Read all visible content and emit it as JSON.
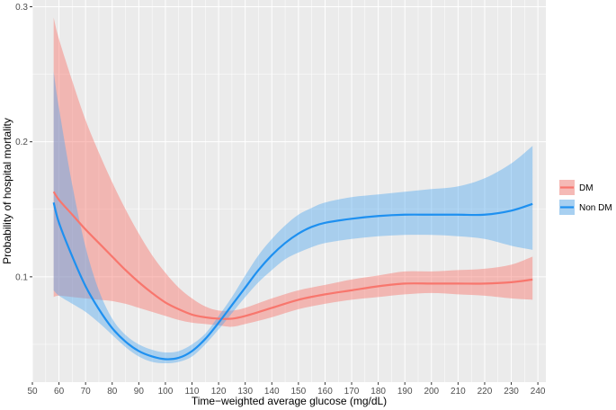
{
  "chart_data": {
    "type": "line",
    "xlabel": "Time−weighted average glucose (mg/dL)",
    "ylabel": "Probability of hospital mortality",
    "xlim": [
      50,
      243
    ],
    "ylim": [
      0.022,
      0.305
    ],
    "x_ticks": [
      50,
      60,
      70,
      80,
      90,
      100,
      110,
      120,
      130,
      140,
      150,
      160,
      170,
      180,
      190,
      200,
      210,
      220,
      230,
      240
    ],
    "x_tick_labels": [
      "50",
      "60",
      "70",
      "80",
      "90",
      "100",
      "110",
      "120",
      "130",
      "140",
      "150",
      "160",
      "170",
      "180",
      "190",
      "200",
      "210",
      "220",
      "230",
      "240"
    ],
    "y_ticks": [
      0.1,
      0.2,
      0.3
    ],
    "y_tick_labels": [
      "0.1",
      "0.2",
      "0.3"
    ],
    "grid": true,
    "legend_position": "right",
    "series": [
      {
        "name": "DM",
        "color": "#F8766D",
        "band_color": "#F8766D",
        "x": [
          58,
          60,
          65,
          70,
          75,
          80,
          85,
          90,
          95,
          100,
          105,
          110,
          115,
          120,
          125,
          130,
          140,
          150,
          160,
          170,
          180,
          190,
          200,
          210,
          220,
          230,
          238
        ],
        "y": [
          0.163,
          0.157,
          0.146,
          0.135,
          0.125,
          0.115,
          0.105,
          0.096,
          0.088,
          0.081,
          0.076,
          0.072,
          0.07,
          0.069,
          0.069,
          0.071,
          0.077,
          0.083,
          0.087,
          0.09,
          0.093,
          0.095,
          0.095,
          0.095,
          0.095,
          0.096,
          0.098
        ],
        "lower": [
          0.085,
          0.086,
          0.085,
          0.084,
          0.083,
          0.082,
          0.08,
          0.077,
          0.074,
          0.071,
          0.068,
          0.066,
          0.065,
          0.064,
          0.063,
          0.065,
          0.07,
          0.076,
          0.08,
          0.083,
          0.085,
          0.087,
          0.088,
          0.087,
          0.086,
          0.084,
          0.083
        ],
        "upper": [
          0.292,
          0.276,
          0.245,
          0.216,
          0.192,
          0.17,
          0.15,
          0.132,
          0.116,
          0.103,
          0.092,
          0.084,
          0.078,
          0.075,
          0.075,
          0.077,
          0.084,
          0.09,
          0.094,
          0.098,
          0.101,
          0.104,
          0.104,
          0.105,
          0.106,
          0.109,
          0.115
        ]
      },
      {
        "name": "Non DM",
        "color": "#1E90F0",
        "band_color": "#4DA6F0",
        "x": [
          58,
          60,
          65,
          70,
          75,
          80,
          85,
          90,
          95,
          100,
          105,
          110,
          115,
          120,
          125,
          130,
          135,
          140,
          145,
          150,
          155,
          160,
          170,
          180,
          190,
          200,
          210,
          220,
          230,
          238
        ],
        "y": [
          0.155,
          0.14,
          0.115,
          0.093,
          0.076,
          0.062,
          0.052,
          0.045,
          0.041,
          0.039,
          0.04,
          0.045,
          0.054,
          0.066,
          0.079,
          0.092,
          0.105,
          0.116,
          0.125,
          0.132,
          0.137,
          0.14,
          0.143,
          0.145,
          0.146,
          0.146,
          0.146,
          0.146,
          0.149,
          0.154
        ],
        "lower": [
          0.09,
          0.086,
          0.08,
          0.074,
          0.066,
          0.057,
          0.048,
          0.041,
          0.037,
          0.036,
          0.037,
          0.041,
          0.05,
          0.061,
          0.073,
          0.085,
          0.096,
          0.105,
          0.113,
          0.118,
          0.122,
          0.125,
          0.128,
          0.13,
          0.131,
          0.131,
          0.13,
          0.128,
          0.123,
          0.12
        ],
        "upper": [
          0.252,
          0.225,
          0.168,
          0.122,
          0.09,
          0.069,
          0.057,
          0.05,
          0.046,
          0.044,
          0.045,
          0.05,
          0.058,
          0.071,
          0.085,
          0.101,
          0.116,
          0.128,
          0.138,
          0.146,
          0.151,
          0.155,
          0.159,
          0.161,
          0.163,
          0.165,
          0.167,
          0.173,
          0.184,
          0.197
        ]
      }
    ]
  }
}
